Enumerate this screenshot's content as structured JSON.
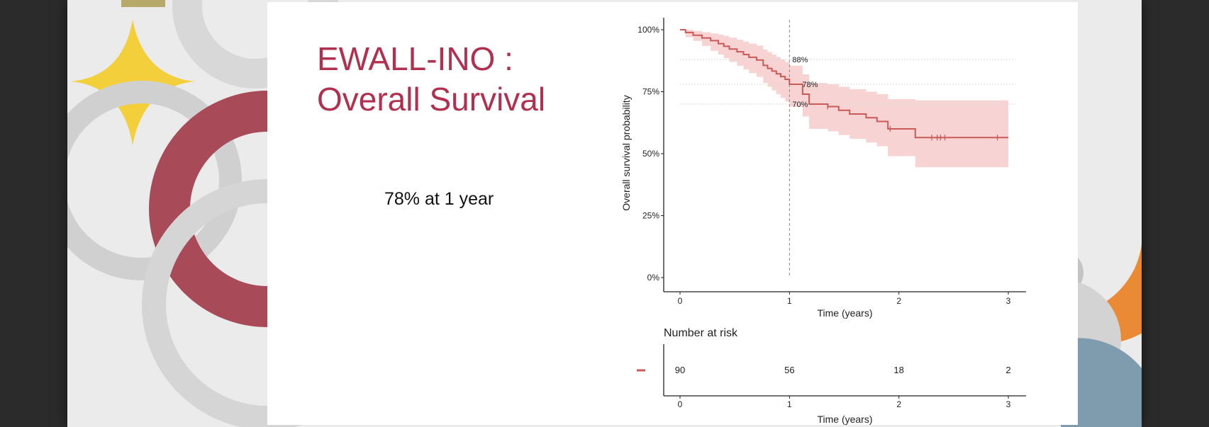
{
  "slide": {
    "title_line1": "EWALL-INO :",
    "title_line2": "Overall Survival",
    "subtitle": "78% at 1 year"
  },
  "colors": {
    "title": "#b2304f",
    "curve": "#c95a58",
    "band": "#f7d4d3"
  },
  "chart_data": {
    "type": "line",
    "subtype": "kaplan-meier",
    "title": "",
    "xlabel": "Time (years)",
    "ylabel": "Overall survival probability",
    "xlim": [
      0,
      3
    ],
    "ylim": [
      0,
      1
    ],
    "x_ticks": [
      0,
      1,
      2,
      3
    ],
    "y_ticks": [
      0,
      0.25,
      0.5,
      0.75,
      1.0
    ],
    "y_tick_labels": [
      "0%",
      "25%",
      "50%",
      "75%",
      "100%"
    ],
    "vertical_reference": 1,
    "annotations": [
      {
        "label": "88%",
        "y": 0.88
      },
      {
        "label": "78%",
        "y": 0.78
      },
      {
        "label": "70%",
        "y": 0.7
      }
    ],
    "series": [
      {
        "name": "Overall survival",
        "steps": [
          [
            0,
            1.0
          ],
          [
            0.05,
            0.989
          ],
          [
            0.12,
            0.978
          ],
          [
            0.2,
            0.967
          ],
          [
            0.28,
            0.956
          ],
          [
            0.35,
            0.944
          ],
          [
            0.4,
            0.933
          ],
          [
            0.45,
            0.922
          ],
          [
            0.52,
            0.911
          ],
          [
            0.58,
            0.9
          ],
          [
            0.63,
            0.889
          ],
          [
            0.7,
            0.878
          ],
          [
            0.76,
            0.856
          ],
          [
            0.8,
            0.844
          ],
          [
            0.84,
            0.833
          ],
          [
            0.88,
            0.822
          ],
          [
            0.92,
            0.811
          ],
          [
            0.96,
            0.8
          ],
          [
            1.0,
            0.78
          ],
          [
            1.08,
            0.78
          ],
          [
            1.12,
            0.74
          ],
          [
            1.18,
            0.7
          ],
          [
            1.28,
            0.7
          ],
          [
            1.35,
            0.69
          ],
          [
            1.45,
            0.675
          ],
          [
            1.55,
            0.66
          ],
          [
            1.7,
            0.645
          ],
          [
            1.8,
            0.63
          ],
          [
            1.9,
            0.6
          ],
          [
            2.1,
            0.6
          ],
          [
            2.15,
            0.565
          ],
          [
            3.0,
            0.565
          ]
        ],
        "lower": [
          [
            0,
            1.0
          ],
          [
            0.05,
            0.97
          ],
          [
            0.12,
            0.955
          ],
          [
            0.2,
            0.935
          ],
          [
            0.28,
            0.915
          ],
          [
            0.35,
            0.9
          ],
          [
            0.4,
            0.885
          ],
          [
            0.45,
            0.87
          ],
          [
            0.52,
            0.855
          ],
          [
            0.58,
            0.84
          ],
          [
            0.63,
            0.825
          ],
          [
            0.7,
            0.81
          ],
          [
            0.76,
            0.785
          ],
          [
            0.8,
            0.77
          ],
          [
            0.84,
            0.755
          ],
          [
            0.88,
            0.74
          ],
          [
            0.92,
            0.725
          ],
          [
            0.96,
            0.71
          ],
          [
            1.0,
            0.69
          ],
          [
            1.08,
            0.69
          ],
          [
            1.12,
            0.65
          ],
          [
            1.18,
            0.6
          ],
          [
            1.28,
            0.6
          ],
          [
            1.35,
            0.59
          ],
          [
            1.45,
            0.575
          ],
          [
            1.55,
            0.56
          ],
          [
            1.7,
            0.545
          ],
          [
            1.8,
            0.53
          ],
          [
            1.9,
            0.49
          ],
          [
            2.1,
            0.49
          ],
          [
            2.15,
            0.445
          ],
          [
            3.0,
            0.445
          ]
        ],
        "upper": [
          [
            0,
            1.0
          ],
          [
            0.05,
            1.0
          ],
          [
            0.12,
            0.995
          ],
          [
            0.2,
            0.99
          ],
          [
            0.28,
            0.985
          ],
          [
            0.35,
            0.98
          ],
          [
            0.4,
            0.975
          ],
          [
            0.45,
            0.968
          ],
          [
            0.52,
            0.96
          ],
          [
            0.58,
            0.952
          ],
          [
            0.63,
            0.944
          ],
          [
            0.7,
            0.936
          ],
          [
            0.76,
            0.92
          ],
          [
            0.8,
            0.91
          ],
          [
            0.84,
            0.9
          ],
          [
            0.88,
            0.89
          ],
          [
            0.92,
            0.88
          ],
          [
            0.96,
            0.87
          ],
          [
            1.0,
            0.855
          ],
          [
            1.08,
            0.855
          ],
          [
            1.12,
            0.82
          ],
          [
            1.18,
            0.785
          ],
          [
            1.28,
            0.785
          ],
          [
            1.35,
            0.78
          ],
          [
            1.45,
            0.77
          ],
          [
            1.55,
            0.76
          ],
          [
            1.7,
            0.75
          ],
          [
            1.8,
            0.74
          ],
          [
            1.9,
            0.72
          ],
          [
            2.1,
            0.72
          ],
          [
            2.15,
            0.715
          ],
          [
            3.0,
            0.715
          ]
        ],
        "censor_times": [
          1.35,
          1.92,
          2.3,
          2.35,
          2.38,
          2.42,
          2.9
        ]
      }
    ],
    "risk_table": {
      "title": "Number at risk",
      "xlabel": "Time (years)",
      "times": [
        0,
        1,
        2,
        3
      ],
      "values": [
        90,
        56,
        18,
        2
      ]
    }
  }
}
